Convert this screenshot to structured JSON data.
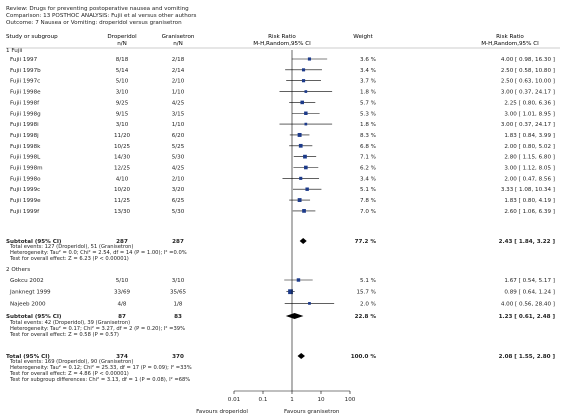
{
  "header": {
    "review": "Review:  Drugs for preventing postoperative nausea and vomiting",
    "comparison": "Comparison:  13 POSTHOC ANALYSIS: Fujii et al versus other authors",
    "outcome": "Outcome:  7 Nausea or Vomiting: droperidol versus granisetron"
  },
  "columns": {
    "study": "Study or subgroup",
    "drop": "Droperidol",
    "drop_sub": "n/N",
    "gran": "Granisetron",
    "gran_sub": "n/N",
    "rr": "Risk Ratio",
    "rr_sub": "M-H,Random,95% CI",
    "weight": "Weight",
    "rr2": "Risk Ratio",
    "rr2_sub": "M-H,Random,95% CI"
  },
  "axis": {
    "ticks": [
      "0.01",
      "0.1",
      "1",
      "10",
      "100"
    ],
    "favours_left": "Favours droperidol",
    "favours_right": "Favours granisetron"
  },
  "colors": {
    "marker": "#1c3a8a",
    "line": "#000000"
  },
  "chart_data": {
    "type": "forest",
    "x_scale": "log",
    "xlim": [
      0.01,
      100
    ],
    "groups": [
      {
        "label": "1 Fujii",
        "studies": [
          {
            "name": "Fujii 1997",
            "drop": "8/18",
            "gran": "2/18",
            "weight": "3.6 %",
            "ci_text": "4.00 [ 0.98, 16.30 ]",
            "rr": 4.0,
            "lo": 0.98,
            "hi": 16.3,
            "w": 3.6
          },
          {
            "name": "Fujii 1997b",
            "drop": "5/14",
            "gran": "2/14",
            "weight": "3.4 %",
            "ci_text": "2.50 [ 0.58, 10.80 ]",
            "rr": 2.5,
            "lo": 0.58,
            "hi": 10.8,
            "w": 3.4
          },
          {
            "name": "Fujii 1997c",
            "drop": "5/10",
            "gran": "2/10",
            "weight": "3.7 %",
            "ci_text": "2.50 [ 0.63, 10.00 ]",
            "rr": 2.5,
            "lo": 0.63,
            "hi": 10.0,
            "w": 3.7
          },
          {
            "name": "Fujii 1998e",
            "drop": "3/10",
            "gran": "1/10",
            "weight": "1.8 %",
            "ci_text": "3.00 [ 0.37, 24.17 ]",
            "rr": 3.0,
            "lo": 0.37,
            "hi": 24.17,
            "w": 1.8
          },
          {
            "name": "Fujii 1998f",
            "drop": "9/25",
            "gran": "4/25",
            "weight": "5.7 %",
            "ci_text": "2.25 [ 0.80, 6.36 ]",
            "rr": 2.25,
            "lo": 0.8,
            "hi": 6.36,
            "w": 5.7
          },
          {
            "name": "Fujii 1998g",
            "drop": "9/15",
            "gran": "3/15",
            "weight": "5.3 %",
            "ci_text": "3.00 [ 1.01, 8.95 ]",
            "rr": 3.0,
            "lo": 1.01,
            "hi": 8.95,
            "w": 5.3
          },
          {
            "name": "Fujii 1998i",
            "drop": "3/10",
            "gran": "1/10",
            "weight": "1.8 %",
            "ci_text": "3.00 [ 0.37, 24.17 ]",
            "rr": 3.0,
            "lo": 0.37,
            "hi": 24.17,
            "w": 1.8
          },
          {
            "name": "Fujii 1998j",
            "drop": "11/20",
            "gran": "6/20",
            "weight": "8.3 %",
            "ci_text": "1.83 [ 0.84, 3.99 ]",
            "rr": 1.83,
            "lo": 0.84,
            "hi": 3.99,
            "w": 8.3
          },
          {
            "name": "Fujii 1998k",
            "drop": "10/25",
            "gran": "5/25",
            "weight": "6.8 %",
            "ci_text": "2.00 [ 0.80, 5.02 ]",
            "rr": 2.0,
            "lo": 0.8,
            "hi": 5.02,
            "w": 6.8
          },
          {
            "name": "Fujii 1998L",
            "drop": "14/30",
            "gran": "5/30",
            "weight": "7.1 %",
            "ci_text": "2.80 [ 1.15, 6.80 ]",
            "rr": 2.8,
            "lo": 1.15,
            "hi": 6.8,
            "w": 7.1
          },
          {
            "name": "Fujii 1998m",
            "drop": "12/25",
            "gran": "4/25",
            "weight": "6.2 %",
            "ci_text": "3.00 [ 1.12, 8.05 ]",
            "rr": 3.0,
            "lo": 1.12,
            "hi": 8.05,
            "w": 6.2
          },
          {
            "name": "Fujii 1998o",
            "drop": "4/10",
            "gran": "2/10",
            "weight": "3.4 %",
            "ci_text": "2.00 [ 0.47, 8.56 ]",
            "rr": 2.0,
            "lo": 0.47,
            "hi": 8.56,
            "w": 3.4
          },
          {
            "name": "Fujii 1999c",
            "drop": "10/20",
            "gran": "3/20",
            "weight": "5.1 %",
            "ci_text": "3.33 [ 1.08, 10.34 ]",
            "rr": 3.33,
            "lo": 1.08,
            "hi": 10.34,
            "w": 5.1
          },
          {
            "name": "Fujii 1999e",
            "drop": "11/25",
            "gran": "6/25",
            "weight": "7.8 %",
            "ci_text": "1.83 [ 0.80, 4.19 ]",
            "rr": 1.83,
            "lo": 0.8,
            "hi": 4.19,
            "w": 7.8
          },
          {
            "name": "Fujii 1999f",
            "drop": "13/30",
            "gran": "5/30",
            "weight": "7.0 %",
            "ci_text": "2.60 [ 1.06, 6.39 ]",
            "rr": 2.6,
            "lo": 1.06,
            "hi": 6.39,
            "w": 7.0
          }
        ],
        "subtotal": {
          "label": "Subtotal (95% CI)",
          "drop_n": "287",
          "gran_n": "287",
          "weight": "77.2 %",
          "ci_text": "2.43 [ 1.84, 3.22 ]",
          "rr": 2.43,
          "lo": 1.84,
          "hi": 3.22
        },
        "notes": [
          "Total events: 127 (Droperidol), 51 (Granisetron)",
          "Heterogeneity: Tau² = 0.0; Chi² = 2.54, df = 14 (P = 1.00); I² =0.0%",
          "Test for overall effect: Z = 6.23 (P < 0.00001)"
        ]
      },
      {
        "label": "2 Others",
        "studies": [
          {
            "name": "Gokcu 2002",
            "drop": "5/10",
            "gran": "3/10",
            "weight": "5.1 %",
            "ci_text": "1.67 [ 0.54, 5.17 ]",
            "rr": 1.67,
            "lo": 0.54,
            "hi": 5.17,
            "w": 5.1
          },
          {
            "name": "Janknegt 1999",
            "drop": "33/69",
            "gran": "35/65",
            "weight": "15.7 %",
            "ci_text": "0.89 [ 0.64, 1.24 ]",
            "rr": 0.89,
            "lo": 0.64,
            "hi": 1.24,
            "w": 15.7
          },
          {
            "name": "Najeeb 2000",
            "drop": "4/8",
            "gran": "1/8",
            "weight": "2.0 %",
            "ci_text": "4.00 [ 0.56, 28.40 ]",
            "rr": 4.0,
            "lo": 0.56,
            "hi": 28.4,
            "w": 2.0
          }
        ],
        "subtotal": {
          "label": "Subtotal (95% CI)",
          "drop_n": "87",
          "gran_n": "83",
          "weight": "22.8 %",
          "ci_text": "1.23 [ 0.61, 2.48 ]",
          "rr": 1.23,
          "lo": 0.61,
          "hi": 2.48
        },
        "notes": [
          "Total events: 42 (Droperidol), 39 (Granisetron)",
          "Heterogeneity: Tau² = 0.17; Chi² = 3.27, df = 2 (P = 0.20); I² =39%",
          "Test for overall effect: Z = 0.58 (P = 0.57)"
        ]
      }
    ],
    "total": {
      "label": "Total (95% CI)",
      "drop_n": "374",
      "gran_n": "370",
      "weight": "100.0 %",
      "ci_text": "2.08 [ 1.55, 2.80 ]",
      "rr": 2.08,
      "lo": 1.55,
      "hi": 2.8
    },
    "total_notes": [
      "Total events: 169 (Droperidol), 90 (Granisetron)",
      "Heterogeneity: Tau² = 0.12; Chi² = 25.33, df = 17 (P = 0.09); I² =33%",
      "Test for overall effect: Z = 4.86 (P < 0.00001)",
      "Test for subgroup differences: Chi² = 3.13, df = 1 (P = 0.08), I² =68%"
    ]
  }
}
